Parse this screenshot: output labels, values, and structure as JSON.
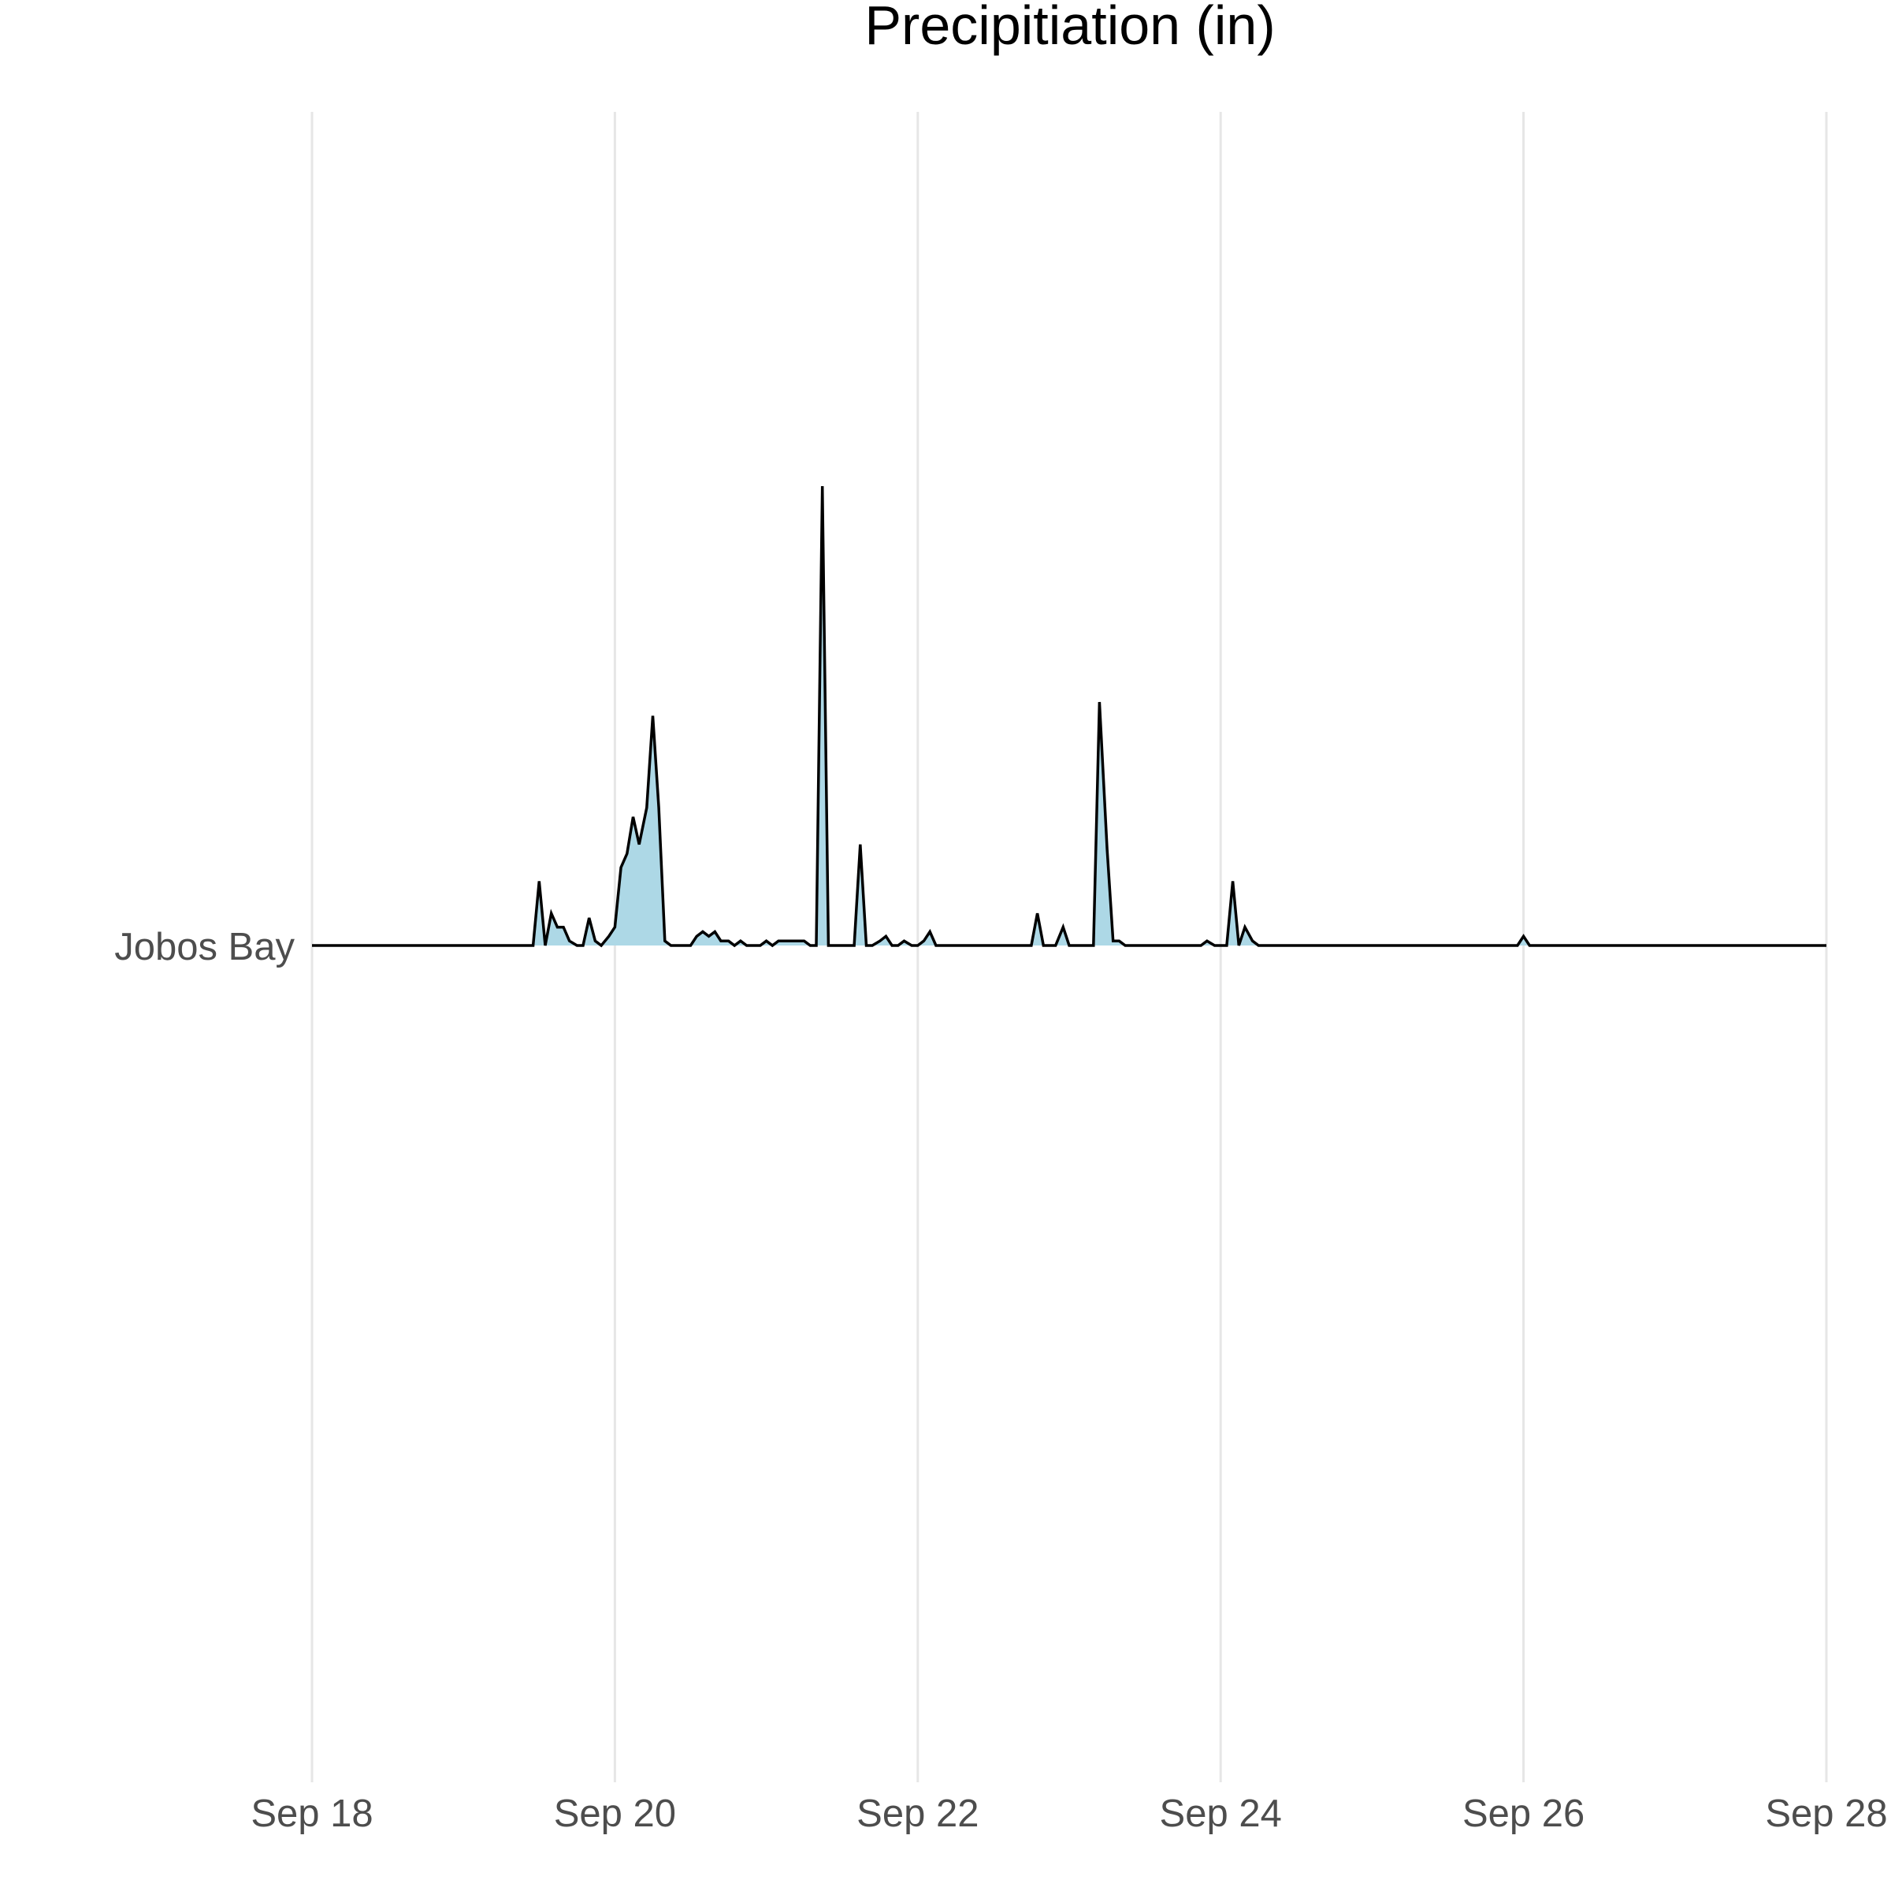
{
  "chart_data": {
    "type": "area",
    "title": "Precipitiation (in)",
    "xlabel": "",
    "ylabel": "",
    "x_tick_labels": [
      "Sep 18",
      "Sep 20",
      "Sep 22",
      "Sep 24",
      "Sep 26",
      "Sep 28"
    ],
    "y_categories": [
      "Jobos Bay"
    ],
    "grid": "vertical",
    "fill_color": "#add8e6",
    "line_color": "#000000",
    "grid_color": "#e6e6e6",
    "series": [
      {
        "category": "Jobos Bay",
        "points": [
          [
            18.0,
            0
          ],
          [
            19.46,
            0
          ],
          [
            19.5,
            0.14
          ],
          [
            19.54,
            0
          ],
          [
            19.58,
            0.07
          ],
          [
            19.62,
            0.04
          ],
          [
            19.66,
            0.04
          ],
          [
            19.7,
            0.01
          ],
          [
            19.75,
            0
          ],
          [
            19.79,
            0
          ],
          [
            19.83,
            0.06
          ],
          [
            19.87,
            0.01
          ],
          [
            19.91,
            0
          ],
          [
            19.96,
            0.02
          ],
          [
            20.0,
            0.04
          ],
          [
            20.04,
            0.17
          ],
          [
            20.08,
            0.2
          ],
          [
            20.12,
            0.28
          ],
          [
            20.16,
            0.22
          ],
          [
            20.21,
            0.3
          ],
          [
            20.25,
            0.5
          ],
          [
            20.29,
            0.3
          ],
          [
            20.33,
            0.01
          ],
          [
            20.37,
            0
          ],
          [
            20.42,
            0
          ],
          [
            20.46,
            0
          ],
          [
            20.5,
            0
          ],
          [
            20.54,
            0.02
          ],
          [
            20.58,
            0.03
          ],
          [
            20.62,
            0.02
          ],
          [
            20.66,
            0.03
          ],
          [
            20.7,
            0.01
          ],
          [
            20.75,
            0.01
          ],
          [
            20.79,
            0
          ],
          [
            20.83,
            0.01
          ],
          [
            20.87,
            0
          ],
          [
            20.91,
            0
          ],
          [
            20.96,
            0
          ],
          [
            21.0,
            0.01
          ],
          [
            21.04,
            0
          ],
          [
            21.08,
            0.01
          ],
          [
            21.12,
            0.01
          ],
          [
            21.16,
            0.01
          ],
          [
            21.21,
            0.01
          ],
          [
            21.25,
            0.01
          ],
          [
            21.29,
            0
          ],
          [
            21.33,
            0
          ],
          [
            21.37,
            1.0
          ],
          [
            21.41,
            0
          ],
          [
            21.46,
            0
          ],
          [
            21.5,
            0
          ],
          [
            21.54,
            0
          ],
          [
            21.58,
            0
          ],
          [
            21.62,
            0.22
          ],
          [
            21.66,
            0
          ],
          [
            21.7,
            0
          ],
          [
            21.75,
            0.01
          ],
          [
            21.79,
            0.02
          ],
          [
            21.83,
            0
          ],
          [
            21.87,
            0
          ],
          [
            21.91,
            0.01
          ],
          [
            21.96,
            0
          ],
          [
            22.0,
            0
          ],
          [
            22.04,
            0.01
          ],
          [
            22.08,
            0.03
          ],
          [
            22.12,
            0
          ],
          [
            22.5,
            0
          ],
          [
            22.75,
            0
          ],
          [
            22.79,
            0.07
          ],
          [
            22.83,
            0
          ],
          [
            22.91,
            0
          ],
          [
            22.96,
            0.04
          ],
          [
            23.0,
            0
          ],
          [
            23.16,
            0
          ],
          [
            23.2,
            0.53
          ],
          [
            23.25,
            0.21
          ],
          [
            23.29,
            0.01
          ],
          [
            23.33,
            0.01
          ],
          [
            23.37,
            0
          ],
          [
            23.87,
            0
          ],
          [
            23.91,
            0.01
          ],
          [
            23.96,
            0
          ],
          [
            24.04,
            0
          ],
          [
            24.08,
            0.14
          ],
          [
            24.12,
            0
          ],
          [
            24.16,
            0.04
          ],
          [
            24.21,
            0.01
          ],
          [
            24.25,
            0
          ],
          [
            25.96,
            0
          ],
          [
            26.0,
            0.02
          ],
          [
            26.04,
            0
          ],
          [
            28.0,
            0
          ]
        ]
      }
    ],
    "x_range": [
      18,
      28
    ],
    "y_range": [
      0,
      1.0
    ]
  }
}
